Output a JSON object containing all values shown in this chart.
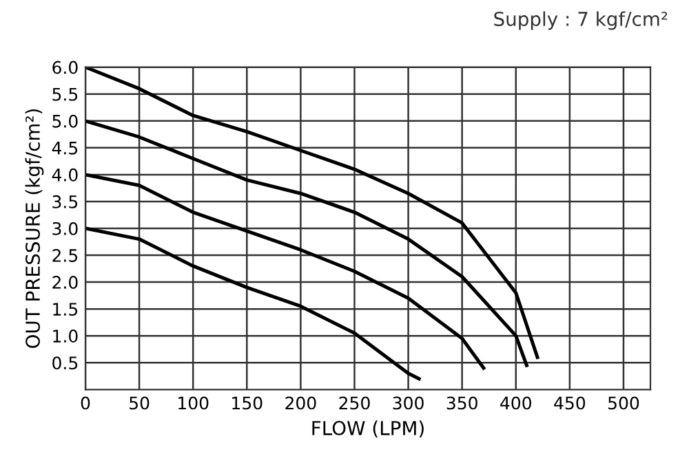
{
  "chart_data": {
    "type": "line",
    "xlabel": "FLOW (LPM)",
    "ylabel": "OUT PRESSURE (kgf/cm²)",
    "annotations": [
      "Supply : 7 kgf/cm²"
    ],
    "series": [
      {
        "color": "#000000",
        "x": [
          0,
          50,
          100,
          150,
          200,
          250,
          300,
          350,
          400,
          420
        ],
        "values": [
          6.0,
          5.6,
          5.1,
          4.8,
          4.45,
          4.1,
          3.65,
          3.1,
          1.8,
          0.6
        ]
      },
      {
        "color": "#000000",
        "x": [
          0,
          50,
          100,
          150,
          200,
          250,
          300,
          350,
          400,
          410
        ],
        "values": [
          5.0,
          4.7,
          4.3,
          3.9,
          3.65,
          3.3,
          2.8,
          2.1,
          1.0,
          0.45
        ]
      },
      {
        "color": "#000000",
        "x": [
          0,
          50,
          100,
          150,
          200,
          250,
          300,
          350,
          370
        ],
        "values": [
          4.0,
          3.8,
          3.3,
          2.95,
          2.6,
          2.2,
          1.7,
          0.95,
          0.4
        ]
      },
      {
        "color": "#000000",
        "x": [
          0,
          50,
          100,
          150,
          200,
          250,
          300,
          310
        ],
        "values": [
          3.0,
          2.8,
          2.3,
          1.9,
          1.55,
          1.05,
          0.3,
          0.2
        ]
      }
    ],
    "xlim": [
      0,
      525
    ],
    "xticks": [
      0,
      50,
      100,
      150,
      200,
      250,
      300,
      350,
      400,
      450,
      500
    ],
    "ylim": [
      0,
      6
    ],
    "yticks": [
      {
        "value": 0.5,
        "label": "0.5"
      },
      {
        "value": 1,
        "label": "1.0"
      },
      {
        "value": 1.5,
        "label": "1.5"
      },
      {
        "value": 2,
        "label": "2.0"
      },
      {
        "value": 2.5,
        "label": "2.5"
      },
      {
        "value": 3,
        "label": "3.0"
      },
      {
        "value": 3.5,
        "label": "3.5"
      },
      {
        "value": 4,
        "label": "4.0"
      },
      {
        "value": 4.5,
        "label": "4.5"
      },
      {
        "value": 5,
        "label": "5.0"
      },
      {
        "value": 5.5,
        "label": "5.5"
      },
      {
        "value": 6,
        "label": "6.0"
      }
    ],
    "grid": true,
    "legend": false,
    "marker": "none",
    "line_style": "solid"
  }
}
